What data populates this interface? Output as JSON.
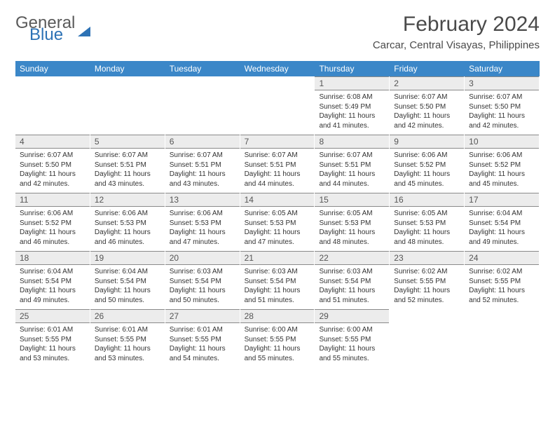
{
  "logo": {
    "text_general": "General",
    "text_blue": "Blue"
  },
  "title": "February 2024",
  "location": "Carcar, Central Visayas, Philippines",
  "colors": {
    "header_bar": "#3b87c8",
    "daynum_bg": "#ececec",
    "daynum_border": "#8a8a8a",
    "text_dark": "#4a4a4a",
    "logo_blue": "#2d72b5"
  },
  "days_of_week": [
    "Sunday",
    "Monday",
    "Tuesday",
    "Wednesday",
    "Thursday",
    "Friday",
    "Saturday"
  ],
  "weeks": [
    [
      {
        "n": "",
        "sunrise": "",
        "sunset": "",
        "daylight": ""
      },
      {
        "n": "",
        "sunrise": "",
        "sunset": "",
        "daylight": ""
      },
      {
        "n": "",
        "sunrise": "",
        "sunset": "",
        "daylight": ""
      },
      {
        "n": "",
        "sunrise": "",
        "sunset": "",
        "daylight": ""
      },
      {
        "n": "1",
        "sunrise": "Sunrise: 6:08 AM",
        "sunset": "Sunset: 5:49 PM",
        "daylight": "Daylight: 11 hours and 41 minutes."
      },
      {
        "n": "2",
        "sunrise": "Sunrise: 6:07 AM",
        "sunset": "Sunset: 5:50 PM",
        "daylight": "Daylight: 11 hours and 42 minutes."
      },
      {
        "n": "3",
        "sunrise": "Sunrise: 6:07 AM",
        "sunset": "Sunset: 5:50 PM",
        "daylight": "Daylight: 11 hours and 42 minutes."
      }
    ],
    [
      {
        "n": "4",
        "sunrise": "Sunrise: 6:07 AM",
        "sunset": "Sunset: 5:50 PM",
        "daylight": "Daylight: 11 hours and 42 minutes."
      },
      {
        "n": "5",
        "sunrise": "Sunrise: 6:07 AM",
        "sunset": "Sunset: 5:51 PM",
        "daylight": "Daylight: 11 hours and 43 minutes."
      },
      {
        "n": "6",
        "sunrise": "Sunrise: 6:07 AM",
        "sunset": "Sunset: 5:51 PM",
        "daylight": "Daylight: 11 hours and 43 minutes."
      },
      {
        "n": "7",
        "sunrise": "Sunrise: 6:07 AM",
        "sunset": "Sunset: 5:51 PM",
        "daylight": "Daylight: 11 hours and 44 minutes."
      },
      {
        "n": "8",
        "sunrise": "Sunrise: 6:07 AM",
        "sunset": "Sunset: 5:51 PM",
        "daylight": "Daylight: 11 hours and 44 minutes."
      },
      {
        "n": "9",
        "sunrise": "Sunrise: 6:06 AM",
        "sunset": "Sunset: 5:52 PM",
        "daylight": "Daylight: 11 hours and 45 minutes."
      },
      {
        "n": "10",
        "sunrise": "Sunrise: 6:06 AM",
        "sunset": "Sunset: 5:52 PM",
        "daylight": "Daylight: 11 hours and 45 minutes."
      }
    ],
    [
      {
        "n": "11",
        "sunrise": "Sunrise: 6:06 AM",
        "sunset": "Sunset: 5:52 PM",
        "daylight": "Daylight: 11 hours and 46 minutes."
      },
      {
        "n": "12",
        "sunrise": "Sunrise: 6:06 AM",
        "sunset": "Sunset: 5:53 PM",
        "daylight": "Daylight: 11 hours and 46 minutes."
      },
      {
        "n": "13",
        "sunrise": "Sunrise: 6:06 AM",
        "sunset": "Sunset: 5:53 PM",
        "daylight": "Daylight: 11 hours and 47 minutes."
      },
      {
        "n": "14",
        "sunrise": "Sunrise: 6:05 AM",
        "sunset": "Sunset: 5:53 PM",
        "daylight": "Daylight: 11 hours and 47 minutes."
      },
      {
        "n": "15",
        "sunrise": "Sunrise: 6:05 AM",
        "sunset": "Sunset: 5:53 PM",
        "daylight": "Daylight: 11 hours and 48 minutes."
      },
      {
        "n": "16",
        "sunrise": "Sunrise: 6:05 AM",
        "sunset": "Sunset: 5:53 PM",
        "daylight": "Daylight: 11 hours and 48 minutes."
      },
      {
        "n": "17",
        "sunrise": "Sunrise: 6:04 AM",
        "sunset": "Sunset: 5:54 PM",
        "daylight": "Daylight: 11 hours and 49 minutes."
      }
    ],
    [
      {
        "n": "18",
        "sunrise": "Sunrise: 6:04 AM",
        "sunset": "Sunset: 5:54 PM",
        "daylight": "Daylight: 11 hours and 49 minutes."
      },
      {
        "n": "19",
        "sunrise": "Sunrise: 6:04 AM",
        "sunset": "Sunset: 5:54 PM",
        "daylight": "Daylight: 11 hours and 50 minutes."
      },
      {
        "n": "20",
        "sunrise": "Sunrise: 6:03 AM",
        "sunset": "Sunset: 5:54 PM",
        "daylight": "Daylight: 11 hours and 50 minutes."
      },
      {
        "n": "21",
        "sunrise": "Sunrise: 6:03 AM",
        "sunset": "Sunset: 5:54 PM",
        "daylight": "Daylight: 11 hours and 51 minutes."
      },
      {
        "n": "22",
        "sunrise": "Sunrise: 6:03 AM",
        "sunset": "Sunset: 5:54 PM",
        "daylight": "Daylight: 11 hours and 51 minutes."
      },
      {
        "n": "23",
        "sunrise": "Sunrise: 6:02 AM",
        "sunset": "Sunset: 5:55 PM",
        "daylight": "Daylight: 11 hours and 52 minutes."
      },
      {
        "n": "24",
        "sunrise": "Sunrise: 6:02 AM",
        "sunset": "Sunset: 5:55 PM",
        "daylight": "Daylight: 11 hours and 52 minutes."
      }
    ],
    [
      {
        "n": "25",
        "sunrise": "Sunrise: 6:01 AM",
        "sunset": "Sunset: 5:55 PM",
        "daylight": "Daylight: 11 hours and 53 minutes."
      },
      {
        "n": "26",
        "sunrise": "Sunrise: 6:01 AM",
        "sunset": "Sunset: 5:55 PM",
        "daylight": "Daylight: 11 hours and 53 minutes."
      },
      {
        "n": "27",
        "sunrise": "Sunrise: 6:01 AM",
        "sunset": "Sunset: 5:55 PM",
        "daylight": "Daylight: 11 hours and 54 minutes."
      },
      {
        "n": "28",
        "sunrise": "Sunrise: 6:00 AM",
        "sunset": "Sunset: 5:55 PM",
        "daylight": "Daylight: 11 hours and 55 minutes."
      },
      {
        "n": "29",
        "sunrise": "Sunrise: 6:00 AM",
        "sunset": "Sunset: 5:55 PM",
        "daylight": "Daylight: 11 hours and 55 minutes."
      },
      {
        "n": "",
        "sunrise": "",
        "sunset": "",
        "daylight": ""
      },
      {
        "n": "",
        "sunrise": "",
        "sunset": "",
        "daylight": ""
      }
    ]
  ]
}
